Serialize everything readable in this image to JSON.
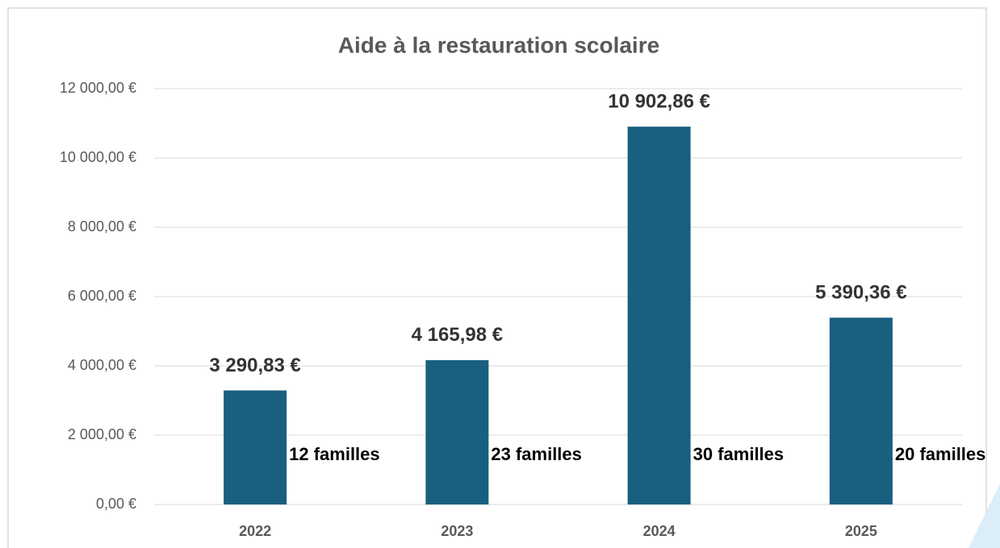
{
  "chart_data": {
    "type": "bar",
    "title": "Aide à la restauration scolaire",
    "categories": [
      "2022",
      "2023",
      "2024",
      "2025"
    ],
    "values": [
      3290.83,
      4165.98,
      10902.86,
      5390.36
    ],
    "value_labels": [
      "3 290,83 €",
      "4 165,98 €",
      "10 902,86 €",
      "5 390,36 €"
    ],
    "annotations": [
      "12 familles",
      "23 familles",
      "30 familles",
      "20 familles"
    ],
    "color": "#185f80",
    "ylim": [
      0,
      12000
    ],
    "yticks": [
      {
        "value": 0,
        "label": "0,00 €"
      },
      {
        "value": 2000,
        "label": "2 000,00 €"
      },
      {
        "value": 4000,
        "label": "4 000,00 €"
      },
      {
        "value": 6000,
        "label": "6 000,00 €"
      },
      {
        "value": 8000,
        "label": "8 000,00 €"
      },
      {
        "value": 10000,
        "label": "10 000,00 €"
      },
      {
        "value": 12000,
        "label": "12 000,00 €"
      }
    ],
    "grid": true
  }
}
